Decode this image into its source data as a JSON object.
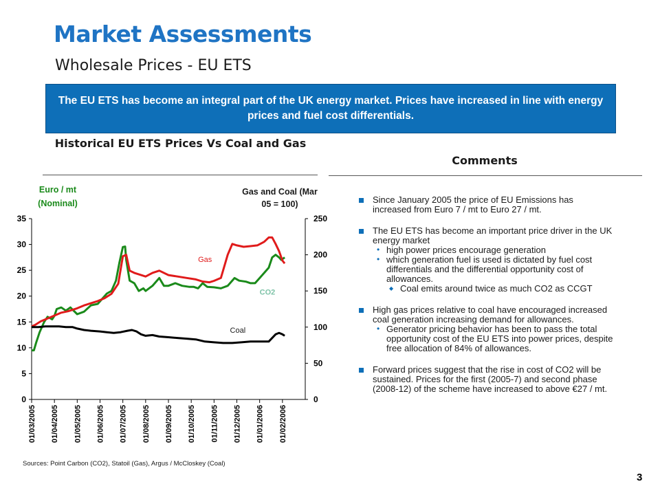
{
  "header": {
    "title": "Market Assessments",
    "subtitle": "Wholesale Prices - EU ETS"
  },
  "banner": {
    "text": "The EU ETS has become an integral part of the UK energy market. Prices have increased in line with energy prices and fuel cost differentials."
  },
  "chart_section": {
    "heading": "Historical EU ETS Prices Vs Coal and Gas",
    "left_unit": "Euro / mt (Nominal)",
    "right_unit": "Gas and Coal (Mar 05 = 100)",
    "sources": "Sources: Point Carbon (CO2), Statoil (Gas), Argus / McCloskey (Coal)"
  },
  "comments": {
    "heading": "Comments",
    "bullets": [
      {
        "text": "Since January 2005 the price of EU Emissions has increased from Euro 7 / mt to Euro 27 / mt.",
        "sub": []
      },
      {
        "text": "The EU ETS has become an important price driver in the UK energy market",
        "sub": [
          {
            "text": "high power prices encourage generation",
            "sub": []
          },
          {
            "text": "which generation fuel is used is dictated by fuel cost differentials and the differential opportunity cost of allowances.",
            "sub": [
              "Coal emits around twice as much CO2 as CCGT"
            ]
          }
        ]
      },
      {
        "text": "High gas prices relative to coal have encouraged increased coal generation increasing demand for allowances.",
        "sub": [
          {
            "text": "Generator pricing behavior has been to pass the total opportunity cost of the EU ETS into power prices, despite free allocation of 84% of allowances.",
            "sub": []
          }
        ]
      },
      {
        "text": "Forward prices suggest that the rise in cost of CO2 will be sustained. Prices for the first (2005-7) and second phase (2008-12) of the scheme have increased to above €27 / mt.",
        "sub": []
      }
    ]
  },
  "page_number": "3",
  "chart_data": {
    "type": "line",
    "x_categories": [
      "01/03/2005",
      "01/04/2005",
      "01/05/2005",
      "01/06/2005",
      "01/07/2005",
      "01/08/2005",
      "01/09/2005",
      "01/10/2005",
      "01/11/2005",
      "01/12/2005",
      "01/01/2006",
      "01/02/2006"
    ],
    "y_left": {
      "min": 0,
      "max": 35,
      "ticks": [
        0,
        5,
        10,
        15,
        20,
        25,
        30,
        35
      ]
    },
    "y_right": {
      "min": 0,
      "max": 250,
      "ticks": [
        0,
        50,
        100,
        150,
        200,
        250
      ]
    },
    "series": [
      {
        "name": "CO2",
        "axis": "left",
        "color": "#1a8a1a",
        "points": [
          [
            0,
            9.5
          ],
          [
            0.1,
            9.5
          ],
          [
            0.2,
            11
          ],
          [
            0.35,
            13
          ],
          [
            0.55,
            15
          ],
          [
            0.7,
            16
          ],
          [
            0.9,
            15.5
          ],
          [
            1.0,
            16.2
          ],
          [
            1.1,
            17.5
          ],
          [
            1.3,
            17.8
          ],
          [
            1.5,
            17.2
          ],
          [
            1.7,
            17.8
          ],
          [
            2.0,
            16.5
          ],
          [
            2.3,
            17.0
          ],
          [
            2.6,
            18.2
          ],
          [
            2.9,
            18.5
          ],
          [
            3.1,
            19.5
          ],
          [
            3.3,
            20.5
          ],
          [
            3.5,
            21.0
          ],
          [
            3.7,
            23.0
          ],
          [
            3.85,
            26.5
          ],
          [
            4.0,
            29.5
          ],
          [
            4.1,
            29.6
          ],
          [
            4.15,
            27.0
          ],
          [
            4.3,
            23.0
          ],
          [
            4.5,
            22.5
          ],
          [
            4.7,
            21.0
          ],
          [
            4.9,
            21.5
          ],
          [
            5.0,
            21.0
          ],
          [
            5.3,
            22.0
          ],
          [
            5.6,
            23.5
          ],
          [
            5.8,
            22.0
          ],
          [
            6.0,
            22.0
          ],
          [
            6.3,
            22.5
          ],
          [
            6.6,
            22.0
          ],
          [
            6.9,
            21.8
          ],
          [
            7.1,
            21.8
          ],
          [
            7.3,
            21.5
          ],
          [
            7.5,
            22.5
          ],
          [
            7.7,
            21.8
          ],
          [
            8.0,
            21.7
          ],
          [
            8.3,
            21.5
          ],
          [
            8.6,
            22.0
          ],
          [
            8.9,
            23.5
          ],
          [
            9.1,
            23.0
          ],
          [
            9.4,
            22.8
          ],
          [
            9.6,
            22.5
          ],
          [
            9.8,
            22.5
          ],
          [
            10.0,
            23.5
          ],
          [
            10.2,
            24.5
          ],
          [
            10.4,
            25.5
          ],
          [
            10.55,
            27.5
          ],
          [
            10.7,
            28.0
          ],
          [
            10.85,
            27.5
          ],
          [
            10.95,
            27.0
          ],
          [
            11.1,
            27.5
          ]
        ]
      },
      {
        "name": "Gas",
        "axis": "right",
        "color": "#e01b1b",
        "points": [
          [
            0,
            101
          ],
          [
            0.15,
            103
          ],
          [
            0.4,
            108
          ],
          [
            0.7,
            112
          ],
          [
            1.0,
            116
          ],
          [
            1.3,
            120
          ],
          [
            1.6,
            122
          ],
          [
            2.0,
            126
          ],
          [
            2.3,
            130
          ],
          [
            2.6,
            133
          ],
          [
            2.9,
            136
          ],
          [
            3.2,
            140
          ],
          [
            3.5,
            146
          ],
          [
            3.8,
            160
          ],
          [
            4.0,
            198
          ],
          [
            4.15,
            200
          ],
          [
            4.3,
            178
          ],
          [
            4.5,
            175
          ],
          [
            4.8,
            172
          ],
          [
            5.0,
            170
          ],
          [
            5.3,
            175
          ],
          [
            5.6,
            178
          ],
          [
            6.0,
            172
          ],
          [
            6.4,
            170
          ],
          [
            6.8,
            168
          ],
          [
            7.2,
            166
          ],
          [
            7.5,
            163
          ],
          [
            7.8,
            162
          ],
          [
            8.0,
            164
          ],
          [
            8.3,
            168
          ],
          [
            8.6,
            200
          ],
          [
            8.8,
            215
          ],
          [
            9.0,
            213
          ],
          [
            9.3,
            211
          ],
          [
            9.6,
            212
          ],
          [
            9.9,
            213
          ],
          [
            10.2,
            218
          ],
          [
            10.4,
            224
          ],
          [
            10.55,
            224
          ],
          [
            10.7,
            215
          ],
          [
            10.85,
            205
          ],
          [
            11.0,
            192
          ],
          [
            11.1,
            188
          ]
        ]
      },
      {
        "name": "Coal",
        "axis": "right",
        "color": "#000000",
        "points": [
          [
            0,
            100
          ],
          [
            0.3,
            100
          ],
          [
            0.6,
            101
          ],
          [
            0.9,
            101
          ],
          [
            1.2,
            101
          ],
          [
            1.5,
            100
          ],
          [
            1.8,
            100
          ],
          [
            2.0,
            98
          ],
          [
            2.3,
            96
          ],
          [
            2.6,
            95
          ],
          [
            3.0,
            94
          ],
          [
            3.3,
            93
          ],
          [
            3.6,
            92
          ],
          [
            3.9,
            93
          ],
          [
            4.2,
            95
          ],
          [
            4.4,
            96
          ],
          [
            4.6,
            94
          ],
          [
            4.8,
            90
          ],
          [
            5.0,
            88
          ],
          [
            5.3,
            89
          ],
          [
            5.6,
            87
          ],
          [
            6.0,
            86
          ],
          [
            6.4,
            85
          ],
          [
            6.8,
            84
          ],
          [
            7.2,
            83
          ],
          [
            7.6,
            80
          ],
          [
            8.0,
            79
          ],
          [
            8.4,
            78
          ],
          [
            8.8,
            78
          ],
          [
            9.2,
            79
          ],
          [
            9.6,
            80
          ],
          [
            10.0,
            80
          ],
          [
            10.4,
            80
          ],
          [
            10.7,
            90
          ],
          [
            10.85,
            92
          ],
          [
            11.0,
            90
          ],
          [
            11.1,
            88
          ]
        ]
      }
    ],
    "annotations": [
      {
        "text": "Gas",
        "color": "#e01b1b",
        "x": 7.3,
        "y_axis": "right",
        "y": 190
      },
      {
        "text": "CO2",
        "color": "#7ec3a8",
        "x": 10.0,
        "y_axis": "right",
        "y": 145
      },
      {
        "text": "Coal",
        "color": "#1a1a1a",
        "x": 8.7,
        "y_axis": "right",
        "y": 92
      }
    ]
  }
}
